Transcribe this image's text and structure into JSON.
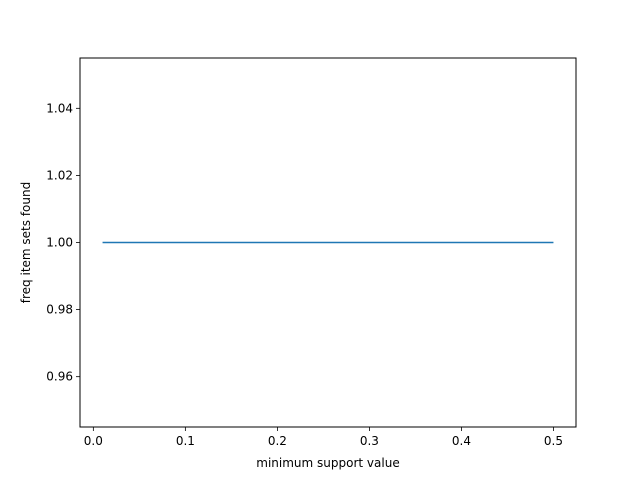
{
  "chart_data": {
    "type": "line",
    "title": "",
    "xlabel": "minimum support value",
    "ylabel": "freq item sets found",
    "xlim": [
      -0.0145,
      0.5245
    ],
    "ylim": [
      0.945,
      1.055
    ],
    "xticks": [
      0.0,
      0.1,
      0.2,
      0.3,
      0.4,
      0.5
    ],
    "xtick_labels": [
      "0.0",
      "0.1",
      "0.2",
      "0.3",
      "0.4",
      "0.5"
    ],
    "yticks": [
      0.96,
      0.98,
      1.0,
      1.02,
      1.04
    ],
    "ytick_labels": [
      "0.96",
      "0.98",
      "1.00",
      "1.02",
      "1.04"
    ],
    "grid": false,
    "series": [
      {
        "color": "#1f77b4",
        "x": [
          0.01,
          0.5
        ],
        "y": [
          1.0,
          1.0
        ]
      }
    ]
  }
}
